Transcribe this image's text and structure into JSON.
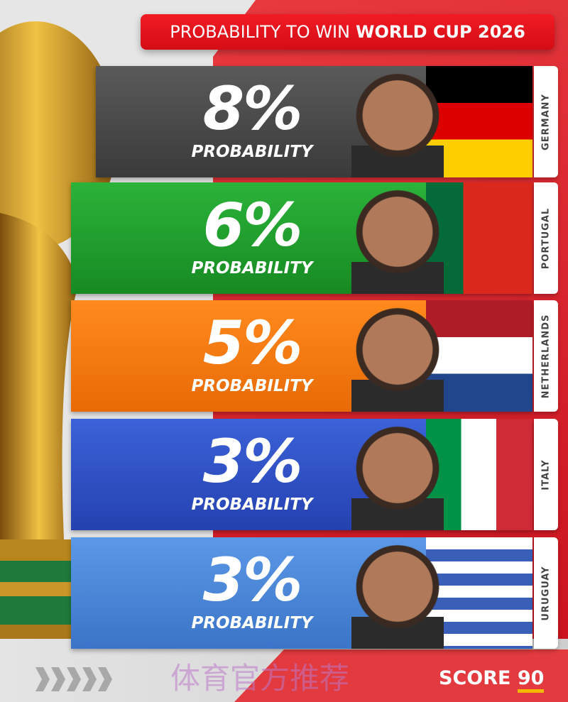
{
  "header": {
    "title_light": "PROBABILITY TO WIN",
    "title_bold": "WORLD CUP 2026"
  },
  "rows": [
    {
      "value": "8%",
      "label": "PROBABILITY",
      "country": "GERMANY",
      "color": "#4a4a4a"
    },
    {
      "value": "6%",
      "label": "PROBABILITY",
      "country": "PORTUGAL",
      "color": "#1f9a2a"
    },
    {
      "value": "5%",
      "label": "PROBABILITY",
      "country": "NETHERLANDS",
      "color": "#f07a10"
    },
    {
      "value": "3%",
      "label": "PROBABILITY",
      "country": "ITALY",
      "color": "#2f52c8"
    },
    {
      "value": "3%",
      "label": "PROBABILITY",
      "country": "URUGUAY",
      "color": "#4a86d8"
    }
  ],
  "watermark": "体育官方推荐",
  "brand": {
    "name": "SCORE",
    "number": "90"
  }
}
